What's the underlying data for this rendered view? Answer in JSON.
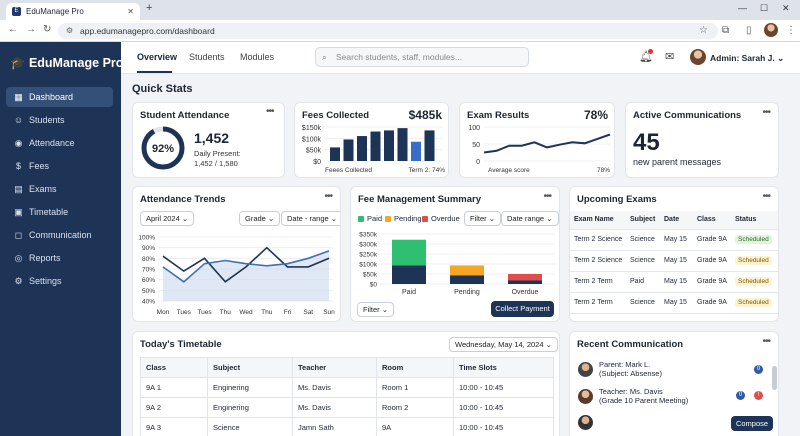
{
  "browser": {
    "tab_title": "EduManage Pro",
    "url": "app.edumanagepro.com/dashboard"
  },
  "sidebar": {
    "brand": "EduManage Pro",
    "items": [
      {
        "label": "Dashboard",
        "icon": "grid-icon",
        "active": true
      },
      {
        "label": "Students",
        "icon": "user-icon"
      },
      {
        "label": "Attendance",
        "icon": "check-circle-icon"
      },
      {
        "label": "Fees",
        "icon": "money-icon"
      },
      {
        "label": "Exams",
        "icon": "document-icon"
      },
      {
        "label": "Timetable",
        "icon": "calendar-icon"
      },
      {
        "label": "Communication",
        "icon": "chat-icon"
      },
      {
        "label": "Reports",
        "icon": "report-icon"
      },
      {
        "label": "Settings",
        "icon": "gear-icon"
      }
    ]
  },
  "header": {
    "tabs": [
      "Overview",
      "Students",
      "Modules"
    ],
    "search_placeholder": "Search students, staff, modules...",
    "user_label": "Admin: Sarah J."
  },
  "quick_stats": {
    "title": "Quick Stats",
    "attendance": {
      "title": "Student Attendance",
      "percent": "92%",
      "percent_value": 0.92,
      "count": "1,452",
      "label": "Daily Present:",
      "ratio": "1,452 / 1,580"
    },
    "fees": {
      "title": "Fees Collected",
      "total": "$485k",
      "y_ticks": [
        "$150k",
        "$100k",
        "$50k",
        "$0"
      ],
      "xlabel_left": "Feees Collected",
      "xlabel_right": "Term 2: 74%",
      "values": [
        60,
        95,
        110,
        130,
        135,
        145,
        85,
        135
      ]
    },
    "exams": {
      "title": "Exam Results",
      "pct": "78%",
      "y_ticks": [
        "100",
        "50",
        "0"
      ],
      "xlabel": "Average score",
      "xlabel_right": "78%",
      "values": [
        25,
        30,
        45,
        45,
        55,
        40,
        48,
        55,
        52,
        65,
        78
      ]
    },
    "comms": {
      "title": "Active Communications",
      "value": "45",
      "label": "new parent messages"
    }
  },
  "attendance_trends": {
    "title": "Attendance Trends",
    "filters": [
      "April 2024",
      "Grade",
      "Date - range"
    ],
    "chart_data": {
      "type": "line",
      "categories": [
        "Mon",
        "Tues",
        "Tues",
        "Thu",
        "Wed",
        "Thu",
        "Fri",
        "Sat",
        "Sun"
      ],
      "ylim": [
        40,
        100
      ],
      "y_ticks": [
        "100%",
        "90%",
        "80%",
        "70%",
        "60%",
        "50%",
        "40%"
      ],
      "series": [
        {
          "values": [
            82,
            68,
            80,
            58,
            72,
            90,
            72,
            72,
            80
          ]
        },
        {
          "values": [
            72,
            58,
            75,
            78,
            75,
            73,
            75,
            80,
            87
          ]
        }
      ]
    }
  },
  "fee_summary": {
    "title": "Fee Management Summary",
    "legend": [
      "Paid",
      "Pending",
      "Overdue"
    ],
    "filter_label": "Filter",
    "date_range_label": "Date range",
    "bottom_filter": "Filter",
    "button": "Collect Payment",
    "chart_data": {
      "type": "bar",
      "categories": [
        "Paid",
        "Pending",
        "Overdue"
      ],
      "y_ticks": [
        "$350k",
        "$300k",
        "$250k",
        "$100k",
        "$50k",
        "$0"
      ],
      "ylim": [
        0,
        350
      ],
      "stacks": [
        {
          "top": 310,
          "bottom": 130
        },
        {
          "top": 130,
          "bottom": 60
        },
        {
          "top": 70,
          "bottom": 25
        }
      ],
      "colors": {
        "Paid": "#2fbf71",
        "Pending": "#f5a623",
        "Overdue": "#e24c4b",
        "base": "#1e3457"
      }
    }
  },
  "upcoming_exams": {
    "title": "Upcoming Exams",
    "columns": [
      "Exam Name",
      "Subject",
      "Date",
      "Class",
      "Status"
    ],
    "rows": [
      [
        "Term 2 Science",
        "Science",
        "May 15",
        "Grade 9A",
        "Scheduled"
      ],
      [
        "Term 2 Science",
        "Science",
        "May 15",
        "Grade 9A",
        "Scheduled"
      ],
      [
        "Term 2 Term",
        "Paid",
        "May 15",
        "Grade 9A",
        "Scheduled"
      ],
      [
        "Term 2 Term",
        "Science",
        "May 15",
        "Grade 9A",
        "Scheduled"
      ]
    ],
    "status_styles": [
      "green",
      "yellow",
      "yellow",
      "yellow"
    ]
  },
  "timetable": {
    "title": "Today's Timetable",
    "date": "Wednesday, May 14, 2024",
    "columns": [
      "Class",
      "Subject",
      "Teacher",
      "Room",
      "Time Slots"
    ],
    "rows": [
      [
        "9A 1",
        "Enginering",
        "Ms. Davis",
        "Room 1",
        "10:00 - 10:45"
      ],
      [
        "9A 2",
        "Enginering",
        "Ms. Davis",
        "Room 2",
        "10:00 - 10:45"
      ],
      [
        "9A 3",
        "Science",
        "Jamn Sath",
        "9A",
        "10:00 - 10:45"
      ]
    ]
  },
  "recent_comm": {
    "title": "Recent Communication",
    "items": [
      {
        "name": "Parent: Mark L.",
        "sub": "(Subject: Absense)",
        "count": "0"
      },
      {
        "name": "Teacher: Ms. Davis",
        "sub": "(Grade 10 Parent Meeting)",
        "count": "0"
      }
    ],
    "compose": "Compose"
  }
}
